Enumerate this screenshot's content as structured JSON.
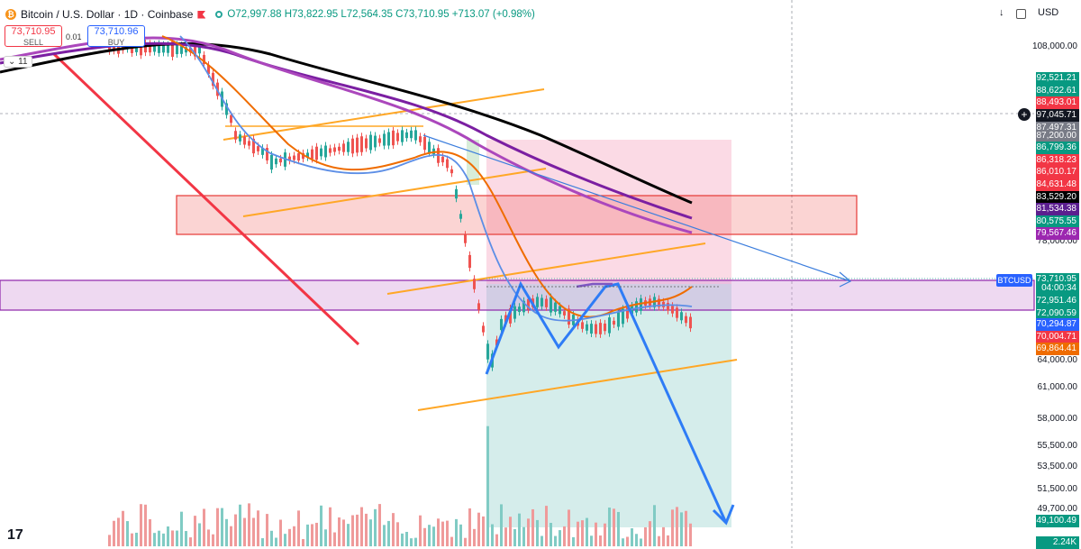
{
  "header": {
    "symbol_title": "Bitcoin / U.S. Dollar · 1D · Coinbase",
    "ohlc": "O72,997.88 H73,822.95 L72,564.35 C73,710.95 +713.07 (+0.98%)",
    "currency": "USD",
    "collapse_label": "11"
  },
  "trade": {
    "sell_price": "73,710.95",
    "sell_label": "SELL",
    "buy_price": "73,710.96",
    "buy_label": "BUY",
    "spread": "0.01"
  },
  "price_axis": {
    "ticks": [
      "108,000.00",
      "78,000.00",
      "64,000.00",
      "61,000.00",
      "58,000.00",
      "55,500.00",
      "53,500.00",
      "51,500.00",
      "49,700.00"
    ],
    "labels": [
      {
        "text": "92,521.21",
        "color": "#089981"
      },
      {
        "text": "88,622.61",
        "color": "#089981"
      },
      {
        "text": "88,493.01",
        "color": "#f23645"
      },
      {
        "text": "97,045.71",
        "color": "#131722"
      },
      {
        "text": "87,497.31",
        "color": "#787b86"
      },
      {
        "text": "87,200.00",
        "color": "#787b86"
      },
      {
        "text": "86,799.36",
        "color": "#089981"
      },
      {
        "text": "86,318.23",
        "color": "#f23645"
      },
      {
        "text": "86,010.17",
        "color": "#f23645"
      },
      {
        "text": "84,631.48",
        "color": "#f23645"
      },
      {
        "text": "83,529.20",
        "color": "#000000"
      },
      {
        "text": "81,534.38",
        "color": "#5b1f8f"
      },
      {
        "text": "80,575.55",
        "color": "#089981"
      },
      {
        "text": "79,567.46",
        "color": "#9c27b0"
      },
      {
        "text": "73,710.95",
        "color": "#089981"
      },
      {
        "text": "04:00:34",
        "color": "#089981"
      },
      {
        "text": "72,951.46",
        "color": "#089981"
      },
      {
        "text": "72,090.59",
        "color": "#089981"
      },
      {
        "text": "70,294.87",
        "color": "#2962ff"
      },
      {
        "text": "70,004.71",
        "color": "#f23645"
      },
      {
        "text": "69,864.41",
        "color": "#ef6c00"
      },
      {
        "text": "49,100.49",
        "color": "#089981"
      },
      {
        "text": "2.24K",
        "color": "#089981"
      }
    ],
    "badge": "BTCUSD"
  },
  "colors": {
    "up": "#089981",
    "down": "#f23645",
    "accent": "#2962ff"
  }
}
